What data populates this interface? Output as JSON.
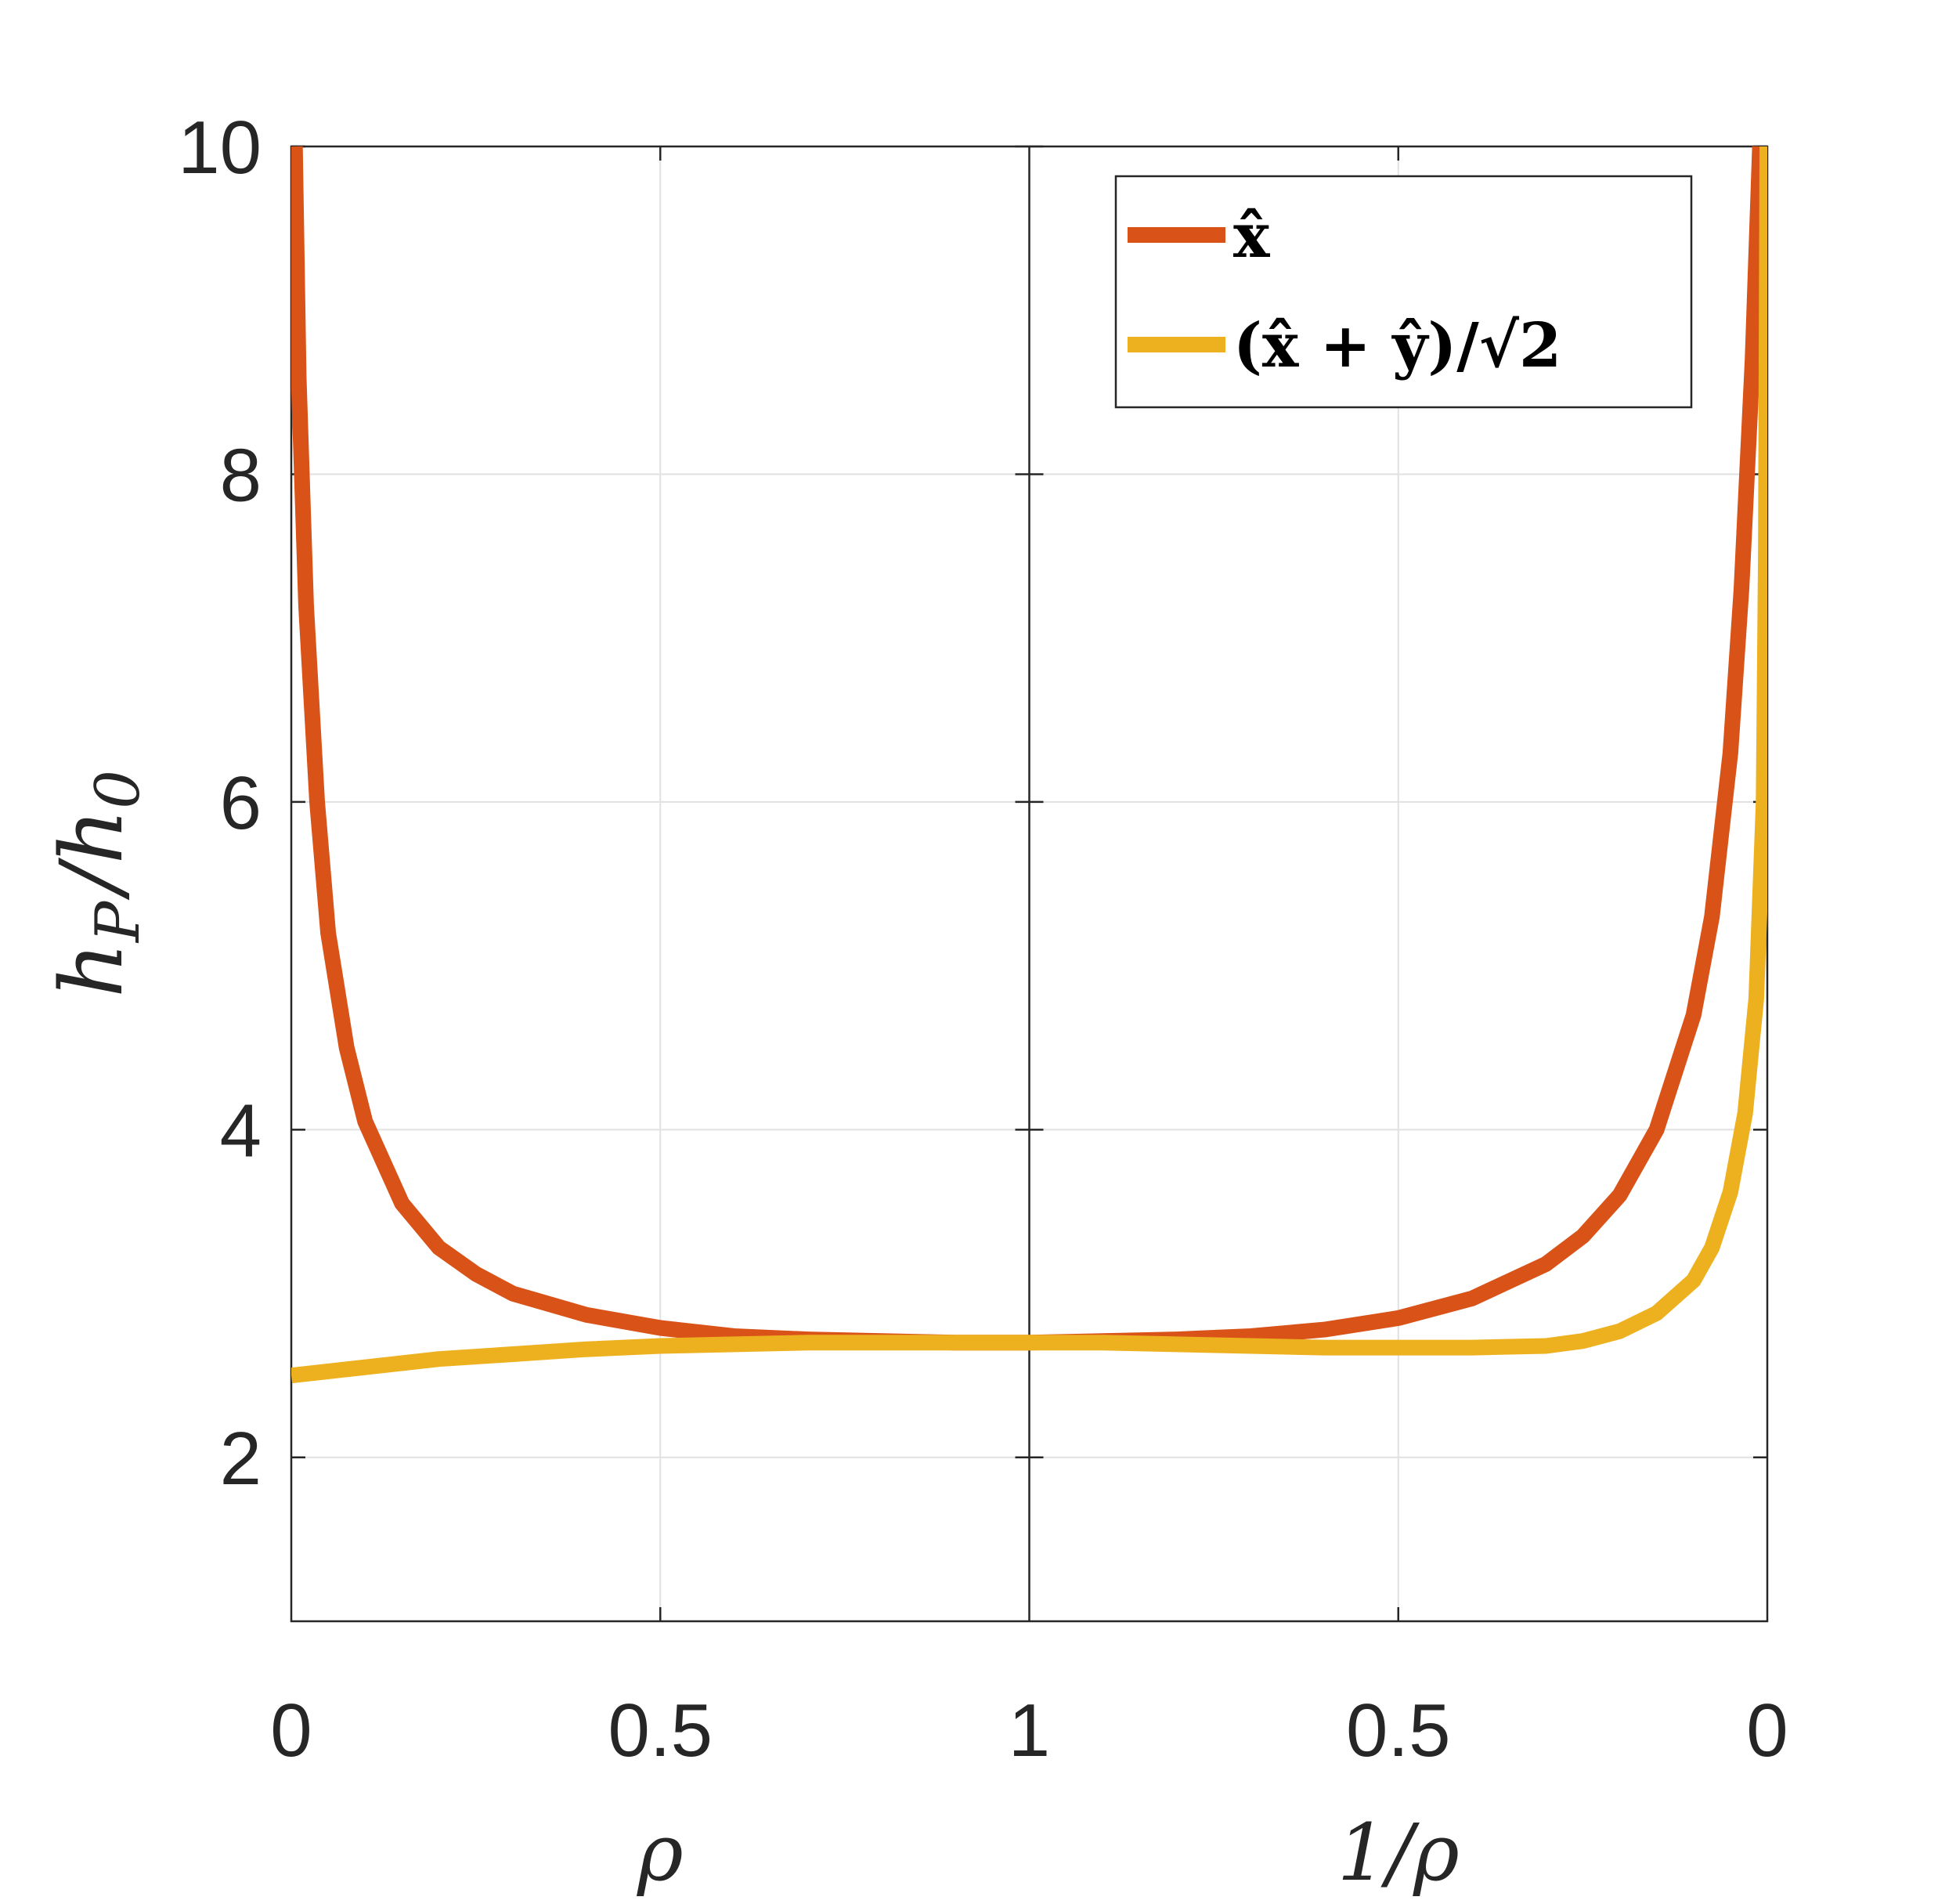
{
  "chart_data": {
    "type": "line",
    "ylabel": "h_P / h_0",
    "xlabels": [
      "ρ",
      "1/ρ"
    ],
    "ylim": [
      1,
      10
    ],
    "yticks": [
      2,
      4,
      6,
      8,
      10
    ],
    "x_segments": [
      {
        "variable": "ρ",
        "range": [
          0,
          1
        ],
        "ticks": [
          "0",
          "0.5",
          "1"
        ]
      },
      {
        "variable": "1/ρ",
        "range": [
          1,
          0
        ],
        "ticks": [
          "0.5",
          "0"
        ]
      }
    ],
    "grid": true,
    "legend_position": "top-right",
    "series": [
      {
        "name": "x̂",
        "color": "#d95319",
        "points": [
          [
            0.005,
            10
          ],
          [
            0.01,
            8.6
          ],
          [
            0.02,
            7.2
          ],
          [
            0.035,
            6.0
          ],
          [
            0.05,
            5.2
          ],
          [
            0.075,
            4.5
          ],
          [
            0.1,
            4.05
          ],
          [
            0.15,
            3.55
          ],
          [
            0.2,
            3.28
          ],
          [
            0.25,
            3.12
          ],
          [
            0.3,
            3.0
          ],
          [
            0.4,
            2.87
          ],
          [
            0.5,
            2.79
          ],
          [
            0.6,
            2.74
          ],
          [
            0.7,
            2.72
          ],
          [
            0.8,
            2.71
          ],
          [
            0.9,
            2.7
          ],
          [
            1.0,
            2.7
          ],
          [
            1.1,
            2.71
          ],
          [
            1.2,
            2.72
          ],
          [
            1.3,
            2.74
          ],
          [
            1.4,
            2.78
          ],
          [
            1.5,
            2.85
          ],
          [
            1.6,
            2.97
          ],
          [
            1.7,
            3.18
          ],
          [
            1.75,
            3.35
          ],
          [
            1.8,
            3.6
          ],
          [
            1.85,
            4.0
          ],
          [
            1.9,
            4.7
          ],
          [
            1.925,
            5.3
          ],
          [
            1.95,
            6.3
          ],
          [
            1.965,
            7.3
          ],
          [
            1.98,
            8.7
          ],
          [
            1.99,
            10
          ]
        ]
      },
      {
        "name": "(x̂ + ŷ)/√2",
        "color": "#edb120",
        "points": [
          [
            0.0,
            2.5
          ],
          [
            0.1,
            2.55
          ],
          [
            0.2,
            2.6
          ],
          [
            0.3,
            2.63
          ],
          [
            0.4,
            2.66
          ],
          [
            0.5,
            2.68
          ],
          [
            0.6,
            2.69
          ],
          [
            0.7,
            2.7
          ],
          [
            0.8,
            2.7
          ],
          [
            0.9,
            2.7
          ],
          [
            1.0,
            2.7
          ],
          [
            1.1,
            2.7
          ],
          [
            1.2,
            2.69
          ],
          [
            1.3,
            2.68
          ],
          [
            1.4,
            2.67
          ],
          [
            1.5,
            2.67
          ],
          [
            1.6,
            2.67
          ],
          [
            1.7,
            2.68
          ],
          [
            1.75,
            2.71
          ],
          [
            1.8,
            2.77
          ],
          [
            1.85,
            2.88
          ],
          [
            1.9,
            3.08
          ],
          [
            1.925,
            3.28
          ],
          [
            1.95,
            3.62
          ],
          [
            1.97,
            4.1
          ],
          [
            1.985,
            4.8
          ],
          [
            1.995,
            6.0
          ],
          [
            1.998,
            7.5
          ],
          [
            2.0,
            10
          ]
        ]
      }
    ]
  }
}
